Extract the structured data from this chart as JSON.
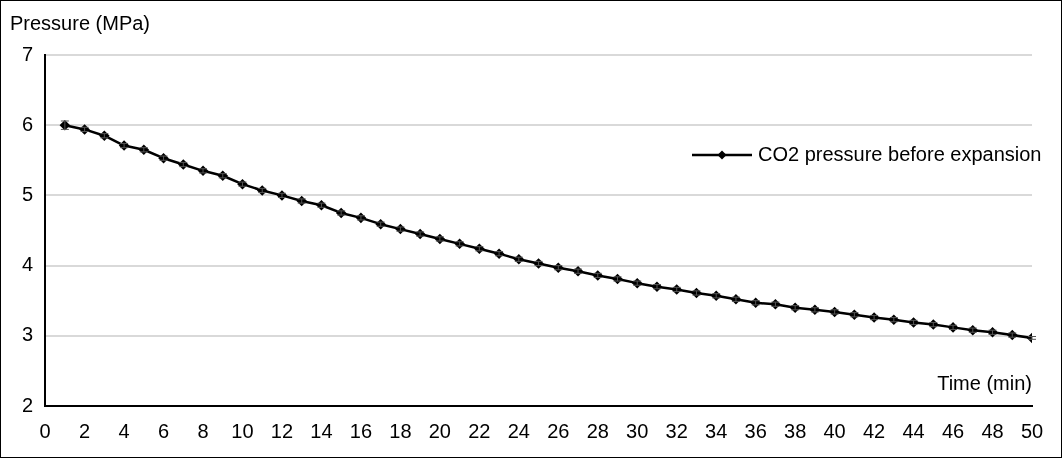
{
  "chart_data": {
    "type": "line",
    "xlabel": "Time (min)",
    "ylabel": "Pressure (MPa)",
    "x": [
      1,
      2,
      3,
      4,
      5,
      6,
      7,
      8,
      9,
      10,
      11,
      12,
      13,
      14,
      15,
      16,
      17,
      18,
      19,
      20,
      21,
      22,
      23,
      24,
      25,
      26,
      27,
      28,
      29,
      30,
      31,
      32,
      33,
      34,
      35,
      36,
      37,
      38,
      39,
      40,
      41,
      42,
      43,
      44,
      45,
      46,
      47,
      48,
      49,
      50
    ],
    "series": [
      {
        "name": "CO2 pressure before expansion",
        "color": "#000000",
        "values": [
          6.0,
          5.94,
          5.85,
          5.71,
          5.65,
          5.53,
          5.44,
          5.35,
          5.28,
          5.16,
          5.07,
          5.0,
          4.92,
          4.86,
          4.75,
          4.68,
          4.59,
          4.52,
          4.45,
          4.38,
          4.31,
          4.24,
          4.17,
          4.09,
          4.03,
          3.97,
          3.92,
          3.86,
          3.81,
          3.75,
          3.7,
          3.66,
          3.61,
          3.57,
          3.52,
          3.47,
          3.45,
          3.4,
          3.37,
          3.34,
          3.3,
          3.26,
          3.23,
          3.19,
          3.16,
          3.12,
          3.08,
          3.05,
          3.01,
          2.97
        ],
        "errors": [
          0.06,
          0.03,
          0.03,
          0.03,
          0.03,
          0.03,
          0.03,
          0.03,
          0.03,
          0.03,
          0.03,
          0.03,
          0.03,
          0.03,
          0.03,
          0.03,
          0.03,
          0.03,
          0.03,
          0.03,
          0.03,
          0.03,
          0.03,
          0.03,
          0.03,
          0.03,
          0.03,
          0.03,
          0.03,
          0.03,
          0.03,
          0.03,
          0.03,
          0.03,
          0.03,
          0.03,
          0.03,
          0.03,
          0.03,
          0.03,
          0.03,
          0.03,
          0.03,
          0.03,
          0.03,
          0.03,
          0.03,
          0.03,
          0.03,
          0.02
        ]
      }
    ],
    "xlim": [
      0,
      50
    ],
    "xticks": [
      0,
      2,
      4,
      6,
      8,
      10,
      12,
      14,
      16,
      18,
      20,
      22,
      24,
      26,
      28,
      30,
      32,
      34,
      36,
      38,
      40,
      42,
      44,
      46,
      48,
      50
    ],
    "ylim": [
      2,
      7
    ],
    "yticks": [
      2,
      3,
      4,
      5,
      6,
      7
    ],
    "grid": "y",
    "legend": "right",
    "marker": "diamond",
    "line_style": "solid"
  }
}
